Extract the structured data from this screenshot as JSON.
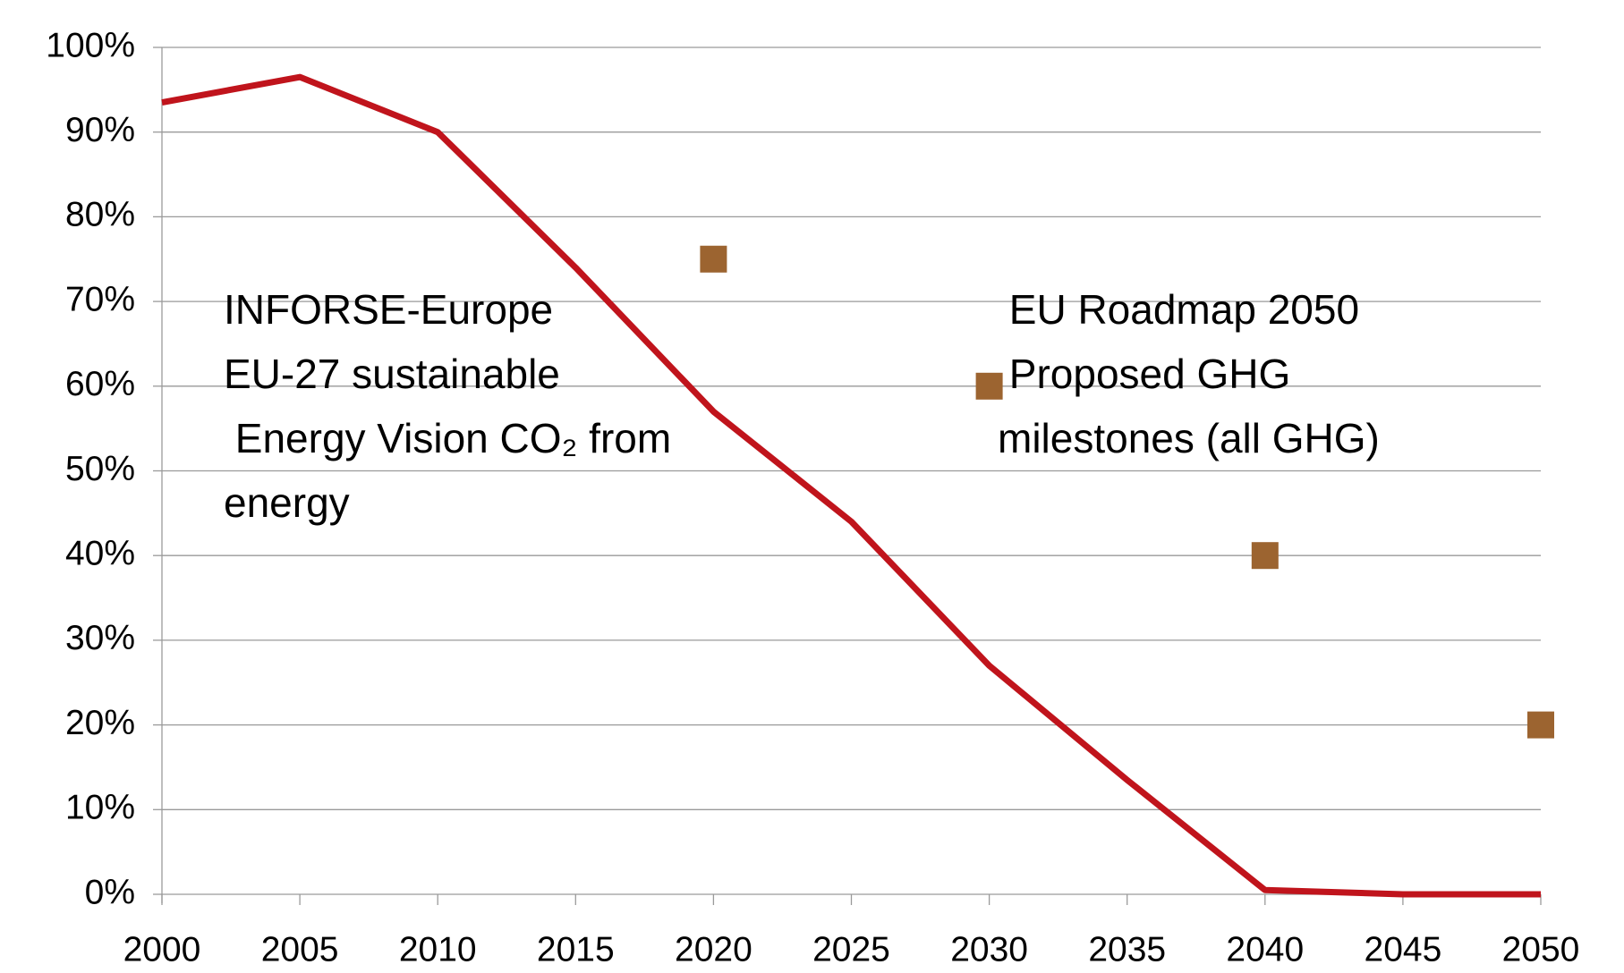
{
  "chart_data": {
    "type": "line",
    "xlim": [
      2000,
      2050
    ],
    "xticks": [
      2000,
      2005,
      2010,
      2015,
      2020,
      2025,
      2030,
      2035,
      2040,
      2045,
      2050
    ],
    "ylim": [
      0,
      100
    ],
    "yticks": [
      {
        "value": 0,
        "label": "0%"
      },
      {
        "value": 10,
        "label": "10%"
      },
      {
        "value": 20,
        "label": "20%"
      },
      {
        "value": 30,
        "label": "30%"
      },
      {
        "value": 40,
        "label": "40%"
      },
      {
        "value": 50,
        "label": "50%"
      },
      {
        "value": 60,
        "label": "60%"
      },
      {
        "value": 70,
        "label": "70%"
      },
      {
        "value": 80,
        "label": "80%"
      },
      {
        "value": 90,
        "label": "90%"
      },
      {
        "value": 100,
        "label": "100%"
      }
    ],
    "grid": true,
    "series": [
      {
        "mode": "line",
        "color": "#c0141c",
        "x": [
          2000,
          2005,
          2010,
          2015,
          2020,
          2025,
          2030,
          2035,
          2040,
          2045,
          2050
        ],
        "values": [
          93.5,
          96.5,
          90,
          74,
          57,
          44,
          27,
          13.5,
          0.5,
          0,
          0
        ]
      },
      {
        "mode": "markers",
        "color": "#9c6430",
        "x": [
          2020,
          2030,
          2040,
          2050
        ],
        "values": [
          75,
          60,
          40,
          20
        ]
      }
    ],
    "annotations": [
      [
        "INFORSE-Europe",
        "EU-27 sustainable",
        " Energy Vision CO₂ from",
        "energy"
      ],
      [
        " EU Roadmap 2050",
        " Proposed GHG",
        "milestones (all GHG)"
      ]
    ]
  }
}
